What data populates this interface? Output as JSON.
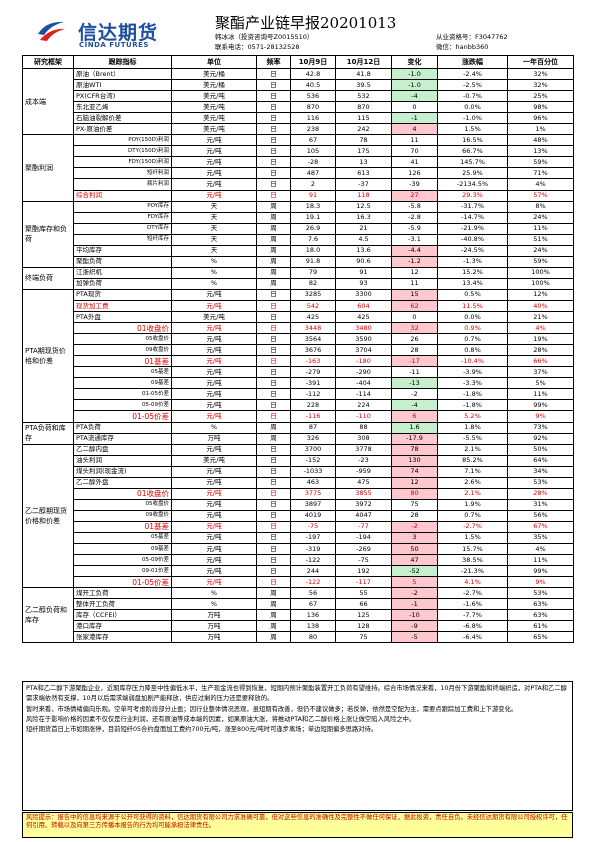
{
  "header": {
    "logo_cn": "信达期货",
    "logo_en": "CINDA FUTURES",
    "title": "聚酯产业链早报20201013",
    "analyst_line1": "韩冰冰（投资咨询号Z0015510）",
    "analyst_line2": "联系电话：0571-28132528",
    "license_line1": "从业资格号：F3047762",
    "license_line2": "微信：hanbb360"
  },
  "columns": [
    "研究框架",
    "跟踪指标",
    "单位",
    "频率",
    "10月9日",
    "10月12日",
    "变化",
    "涨跌幅",
    "一年百分位"
  ],
  "sections": [
    {
      "cat": "成本端",
      "rows": [
        {
          "ind": "原油（Brent）",
          "unit": "美元/桶",
          "freq": "日",
          "d1": "42.8",
          "d2": "41.8",
          "chg": "-1.0",
          "pct": "-2.4%",
          "pctl": "32%",
          "cc": "green"
        },
        {
          "ind": "原油WTI",
          "unit": "美元/桶",
          "freq": "日",
          "d1": "40.5",
          "d2": "39.5",
          "chg": "-1.0",
          "pct": "-2.5%",
          "pctl": "32%",
          "cc": "green"
        },
        {
          "ind": "PX(CFR台湾)",
          "unit": "美元/吨",
          "freq": "日",
          "d1": "536",
          "d2": "532",
          "chg": "-4",
          "pct": "-0.7%",
          "pctl": "25%",
          "cc": "green"
        },
        {
          "ind": "东北亚乙烯",
          "unit": "美元/吨",
          "freq": "日",
          "d1": "870",
          "d2": "870",
          "chg": "0",
          "pct": "0.0%",
          "pctl": "98%",
          "cc": ""
        },
        {
          "ind": "石脑油裂解价差",
          "unit": "美元/吨",
          "freq": "日",
          "d1": "116",
          "d2": "115",
          "chg": "-1",
          "pct": "-1.0%",
          "pctl": "96%",
          "cc": "green"
        },
        {
          "ind": "PX-原油价差",
          "unit": "美元/吨",
          "freq": "日",
          "d1": "238",
          "d2": "242",
          "chg": "4",
          "pct": "1.5%",
          "pctl": "1%",
          "cc": "red"
        }
      ]
    },
    {
      "cat": "聚酯利润",
      "rows": [
        {
          "ind": "POY(150D)利润",
          "unit": "元/吨",
          "freq": "日",
          "d1": "67",
          "d2": "78",
          "chg": "11",
          "pct": "16.5%",
          "pctl": "48%",
          "cc": "",
          "sm": true
        },
        {
          "ind": "DTY(150D)利润",
          "unit": "元/吨",
          "freq": "日",
          "d1": "105",
          "d2": "175",
          "chg": "70",
          "pct": "66.7%",
          "pctl": "13%",
          "cc": "",
          "sm": true
        },
        {
          "ind": "FDY(150D)利润",
          "unit": "元/吨",
          "freq": "日",
          "d1": "-28",
          "d2": "13",
          "chg": "41",
          "pct": "145.7%",
          "pctl": "59%",
          "cc": "",
          "sm": true
        },
        {
          "ind": "短纤利润",
          "unit": "元/吨",
          "freq": "日",
          "d1": "487",
          "d2": "613",
          "chg": "126",
          "pct": "25.9%",
          "pctl": "71%",
          "cc": "",
          "sm": true
        },
        {
          "ind": "瓶片利润",
          "unit": "元/吨",
          "freq": "日",
          "d1": "2",
          "d2": "-37",
          "chg": "-39",
          "pct": "-2134.5%",
          "pctl": "4%",
          "cc": "",
          "sm": true
        },
        {
          "ind": "综合利润",
          "unit": "元/吨",
          "freq": "日",
          "d1": "91",
          "d2": "118",
          "chg": "27",
          "pct": "29.3%",
          "pctl": "57%",
          "cc": "red",
          "rd": true
        }
      ]
    },
    {
      "cat": "聚酯库存和负荷",
      "rows": [
        {
          "ind": "POY库存",
          "unit": "天",
          "freq": "周",
          "d1": "18.3",
          "d2": "12.5",
          "chg": "-5.8",
          "pct": "-31.7%",
          "pctl": "8%",
          "cc": "",
          "sm": true
        },
        {
          "ind": "FDY库存",
          "unit": "天",
          "freq": "周",
          "d1": "19.1",
          "d2": "16.3",
          "chg": "-2.8",
          "pct": "-14.7%",
          "pctl": "24%",
          "cc": "",
          "sm": true
        },
        {
          "ind": "DTY库存",
          "unit": "天",
          "freq": "周",
          "d1": "26.9",
          "d2": "21",
          "chg": "-5.9",
          "pct": "-21.9%",
          "pctl": "11%",
          "cc": "",
          "sm": true
        },
        {
          "ind": "短纤库存",
          "unit": "天",
          "freq": "周",
          "d1": "7.6",
          "d2": "4.5",
          "chg": "-3.1",
          "pct": "-40.8%",
          "pctl": "51%",
          "cc": "",
          "sm": true
        },
        {
          "ind": "平均库存",
          "unit": "天",
          "freq": "周",
          "d1": "18.0",
          "d2": "13.6",
          "chg": "-4.4",
          "pct": "-24.5%",
          "pctl": "24%",
          "cc": "red"
        },
        {
          "ind": "聚酯负荷",
          "unit": "%",
          "freq": "周",
          "d1": "91.8",
          "d2": "90.6",
          "chg": "-1.2",
          "pct": "-1.3%",
          "pctl": "59%",
          "cc": "red"
        }
      ]
    },
    {
      "cat": "终端负荷",
      "rows": [
        {
          "ind": "江浙织机",
          "unit": "%",
          "freq": "周",
          "d1": "79",
          "d2": "91",
          "chg": "12",
          "pct": "15.2%",
          "pctl": "100%",
          "cc": ""
        },
        {
          "ind": "加弹负荷",
          "unit": "%",
          "freq": "周",
          "d1": "82",
          "d2": "93",
          "chg": "11",
          "pct": "13.4%",
          "pctl": "100%",
          "cc": ""
        }
      ]
    },
    {
      "cat": "PTA期现货价格和价差",
      "rows": [
        {
          "ind": "PTA现货",
          "unit": "元/吨",
          "freq": "日",
          "d1": "3285",
          "d2": "3300",
          "chg": "15",
          "pct": "0.5%",
          "pctl": "12%",
          "cc": "red"
        },
        {
          "ind": "现货加工费",
          "unit": "元/吨",
          "freq": "日",
          "d1": "542",
          "d2": "604",
          "chg": "62",
          "pct": "11.5%",
          "pctl": "40%",
          "cc": "red",
          "rd": true
        },
        {
          "ind": "PTA外盘",
          "unit": "美元/吨",
          "freq": "日",
          "d1": "425",
          "d2": "425",
          "chg": "0",
          "pct": "0.0%",
          "pctl": "21%",
          "cc": ""
        },
        {
          "ind": "01收盘价",
          "unit": "元/吨",
          "freq": "日",
          "d1": "3448",
          "d2": "3480",
          "chg": "32",
          "pct": "0.9%",
          "pctl": "4%",
          "cc": "red",
          "rd": true,
          "rt": true
        },
        {
          "ind": "05收盘价",
          "unit": "元/吨",
          "freq": "日",
          "d1": "3564",
          "d2": "3590",
          "chg": "26",
          "pct": "0.7%",
          "pctl": "19%",
          "cc": "",
          "sm": true
        },
        {
          "ind": "09收盘价",
          "unit": "元/吨",
          "freq": "日",
          "d1": "3676",
          "d2": "3704",
          "chg": "28",
          "pct": "0.8%",
          "pctl": "28%",
          "cc": "",
          "sm": true
        },
        {
          "ind": "01基差",
          "unit": "元/吨",
          "freq": "日",
          "d1": "-163",
          "d2": "-180",
          "chg": "-17",
          "pct": "-10.4%",
          "pctl": "66%",
          "cc": "red",
          "rd": true,
          "rt": true
        },
        {
          "ind": "05基差",
          "unit": "元/吨",
          "freq": "日",
          "d1": "-279",
          "d2": "-290",
          "chg": "-11",
          "pct": "-3.9%",
          "pctl": "37%",
          "cc": "",
          "sm": true
        },
        {
          "ind": "09基差",
          "unit": "元/吨",
          "freq": "日",
          "d1": "-391",
          "d2": "-404",
          "chg": "-13",
          "pct": "-3.3%",
          "pctl": "5%",
          "cc": "green",
          "sm": true
        },
        {
          "ind": "01-05价差",
          "unit": "元/吨",
          "freq": "日",
          "d1": "-112",
          "d2": "-114",
          "chg": "-2",
          "pct": "-1.8%",
          "pctl": "11%",
          "cc": "",
          "sm": true
        },
        {
          "ind": "05-09价差",
          "unit": "元/吨",
          "freq": "日",
          "d1": "228",
          "d2": "224",
          "chg": "-4",
          "pct": "-1.8%",
          "pctl": "99%",
          "cc": "green",
          "sm": true
        },
        {
          "ind": "01-05价差",
          "unit": "元/吨",
          "freq": "日",
          "d1": "-116",
          "d2": "-110",
          "chg": "6",
          "pct": "5.2%",
          "pctl": "9%",
          "cc": "red",
          "rd": true,
          "rt": true
        }
      ]
    },
    {
      "cat": "PTA负荷和库存",
      "rows": [
        {
          "ind": "PTA负荷",
          "unit": "%",
          "freq": "周",
          "d1": "87",
          "d2": "88",
          "chg": "1.6",
          "pct": "1.8%",
          "pctl": "73%",
          "cc": "green"
        },
        {
          "ind": "PTA流通库存",
          "unit": "万吨",
          "freq": "周",
          "d1": "326",
          "d2": "308",
          "chg": "-17.9",
          "pct": "-5.5%",
          "pctl": "92%",
          "cc": "red"
        }
      ]
    },
    {
      "cat": "乙二醇期现货价格和价差",
      "rows": [
        {
          "ind": "乙二醇内盘",
          "unit": "元/吨",
          "freq": "日",
          "d1": "3700",
          "d2": "3778",
          "chg": "78",
          "pct": "2.1%",
          "pctl": "50%",
          "cc": "red"
        },
        {
          "ind": "油头利润",
          "unit": "美元/吨",
          "freq": "日",
          "d1": "-152",
          "d2": "-23",
          "chg": "130",
          "pct": "85.2%",
          "pctl": "64%",
          "cc": "red"
        },
        {
          "ind": "煤头利润(现金流)",
          "unit": "元/吨",
          "freq": "日",
          "d1": "-1033",
          "d2": "-959",
          "chg": "74",
          "pct": "7.1%",
          "pctl": "34%",
          "cc": "red"
        },
        {
          "ind": "乙二醇外盘",
          "unit": "元/吨",
          "freq": "日",
          "d1": "463",
          "d2": "475",
          "chg": "12",
          "pct": "2.6%",
          "pctl": "53%",
          "cc": "red"
        },
        {
          "ind": "01收盘价",
          "unit": "元/吨",
          "freq": "日",
          "d1": "3775",
          "d2": "3855",
          "chg": "80",
          "pct": "2.1%",
          "pctl": "28%",
          "cc": "red",
          "rd": true,
          "rt": true
        },
        {
          "ind": "05收盘价",
          "unit": "元/吨",
          "freq": "日",
          "d1": "3897",
          "d2": "3972",
          "chg": "75",
          "pct": "1.9%",
          "pctl": "31%",
          "cc": "",
          "sm": true
        },
        {
          "ind": "09收盘价",
          "unit": "元/吨",
          "freq": "日",
          "d1": "4019",
          "d2": "4047",
          "chg": "28",
          "pct": "0.7%",
          "pctl": "56%",
          "cc": "",
          "sm": true
        },
        {
          "ind": "01基差",
          "unit": "元/吨",
          "freq": "日",
          "d1": "-75",
          "d2": "-77",
          "chg": "-2",
          "pct": "-2.7%",
          "pctl": "67%",
          "cc": "red",
          "rd": true,
          "rt": true
        },
        {
          "ind": "05基差",
          "unit": "元/吨",
          "freq": "日",
          "d1": "-197",
          "d2": "-194",
          "chg": "3",
          "pct": "1.5%",
          "pctl": "35%",
          "cc": "red",
          "sm": true
        },
        {
          "ind": "09基差",
          "unit": "元/吨",
          "freq": "日",
          "d1": "-319",
          "d2": "-269",
          "chg": "50",
          "pct": "15.7%",
          "pctl": "4%",
          "cc": "red",
          "sm": true
        },
        {
          "ind": "05-09价差",
          "unit": "元/吨",
          "freq": "日",
          "d1": "-122",
          "d2": "-75",
          "chg": "47",
          "pct": "38.5%",
          "pctl": "11%",
          "cc": "red",
          "sm": true
        },
        {
          "ind": "09-01价差",
          "unit": "元/吨",
          "freq": "日",
          "d1": "244",
          "d2": "192",
          "chg": "-52",
          "pct": "-21.3%",
          "pctl": "99%",
          "cc": "green",
          "sm": true
        },
        {
          "ind": "01-05价差",
          "unit": "元/吨",
          "freq": "日",
          "d1": "-122",
          "d2": "-117",
          "chg": "5",
          "pct": "4.1%",
          "pctl": "9%",
          "cc": "red",
          "rd": true,
          "rt": true
        }
      ]
    },
    {
      "cat": "乙二醇负荷和库存",
      "rows": [
        {
          "ind": "煤开工负荷",
          "unit": "%",
          "freq": "周",
          "d1": "56",
          "d2": "55",
          "chg": "-2",
          "pct": "-2.7%",
          "pctl": "53%",
          "cc": "red"
        },
        {
          "ind": "整体开工负荷",
          "unit": "%",
          "freq": "周",
          "d1": "67",
          "d2": "66",
          "chg": "-1",
          "pct": "-1.6%",
          "pctl": "63%",
          "cc": "red"
        },
        {
          "ind": "库存（CCFEI）",
          "unit": "万吨",
          "freq": "周",
          "d1": "136",
          "d2": "125",
          "chg": "-10",
          "pct": "-7.7%",
          "pctl": "63%",
          "cc": "red"
        },
        {
          "ind": "港口库存",
          "unit": "万吨",
          "freq": "周",
          "d1": "138",
          "d2": "128",
          "chg": "-9",
          "pct": "-6.8%",
          "pctl": "61%",
          "cc": "red"
        },
        {
          "ind": "张家港库存",
          "unit": "万吨",
          "freq": "周",
          "d1": "80",
          "d2": "75",
          "chg": "-5",
          "pct": "-6.4%",
          "pctl": "65%",
          "cc": "red"
        }
      ]
    }
  ],
  "commentary": [
    "PTA和乙二醇下游聚酯企业，近期库存压力降至中性偏低水平，生产现金流也得到恢复，短期内预计聚酯装置开工负荷有望维持。综合市场情况来看，10月份下游聚酯和终端织造，对PTA和乙二醇需求端依然有支撑，10月以后需求端弱盘加剧严能释放，供应过剩的压力还是要释放的。",
    "暂时来看，市场情绪偏向乐观。空单可考虑阶段部分止盈；因行业整体情况恶观，虽短期有改善，但仍不建议做多；若反弹，依然是空配为主，需要点跟踪加工费和上下游变化。",
    "风险在于影响价格的因素不仅仅是行业利润，还有原油等成本端的因素，如果原油大涨，将推动PTA和乙二醇价格上涨让做空陷入风险之中。",
    "短纤期货首日上市如期涨停，目前短纤05合约盘面加工费约700元/吨，涨至800元/吨时可逢步离场；单边短期偏多思路对待。"
  ],
  "risk": "风险提示：报告中的信息均来源于公开可获得的资料，信达期货有限公司力求准确可靠，但对这些信息的准确性及完整性不做任何保证，据此投资，责任自负。未经信达期货有限公司授权许可，任何引用、转载以及向第三方传播本报告的行为均可能承担法律责任。",
  "colors": {
    "brand": "#1f4e9e",
    "green": "#c6efce",
    "red": "#ffc7ce",
    "risk_bg": "#ffff99"
  }
}
